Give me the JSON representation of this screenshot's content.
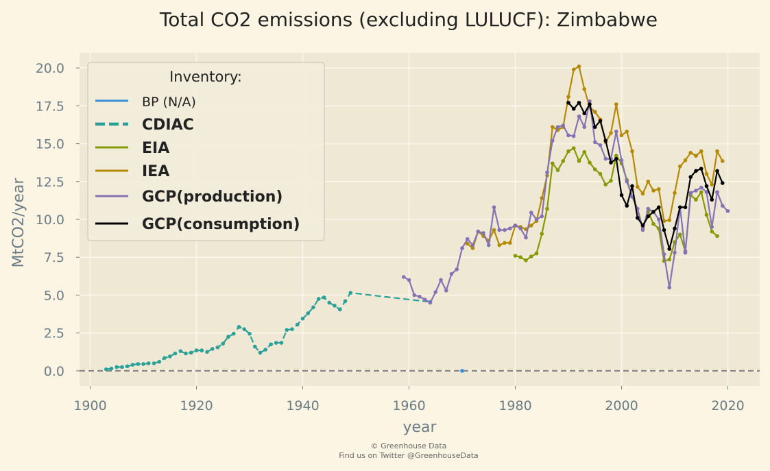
{
  "chart_data": {
    "type": "line",
    "title": "Total CO2 emissions (excluding LULUCF): Zimbabwe",
    "xlabel": "year",
    "ylabel": "MtCO2/year",
    "xlim": [
      1898,
      2026
    ],
    "ylim": [
      -1.0,
      21.0
    ],
    "xticks": [
      1900,
      1920,
      1940,
      1960,
      1980,
      2000,
      2020
    ],
    "yticks": [
      0.0,
      2.5,
      5.0,
      7.5,
      10.0,
      12.5,
      15.0,
      17.5,
      20.0
    ],
    "ytick_labels": [
      "0.0",
      "2.5",
      "5.0",
      "7.5",
      "10.0",
      "12.5",
      "15.0",
      "17.5",
      "20.0"
    ],
    "grid": true,
    "legend": {
      "title": "Inventory:",
      "position": "top-left"
    },
    "zero_line": {
      "y": 0,
      "style": "dashed",
      "color": "#7f7f7f"
    },
    "series": [
      {
        "name": "BP (N/A)",
        "color": "#3a8ed4",
        "dash": "solid",
        "bold": false,
        "x": [
          1970
        ],
        "y": [
          0.0
        ]
      },
      {
        "name": "CDIAC",
        "color": "#2aa198",
        "dash": "dashed",
        "bold": true,
        "x": [
          1903,
          1904,
          1905,
          1906,
          1907,
          1908,
          1909,
          1910,
          1911,
          1912,
          1913,
          1914,
          1915,
          1916,
          1917,
          1918,
          1919,
          1920,
          1921,
          1922,
          1923,
          1924,
          1925,
          1926,
          1927,
          1928,
          1929,
          1930,
          1931,
          1932,
          1933,
          1934,
          1935,
          1936,
          1937,
          1938,
          1939,
          1940,
          1941,
          1942,
          1943,
          1944,
          1945,
          1946,
          1947,
          1948,
          1949,
          1964
        ],
        "y": [
          0.1,
          0.15,
          0.25,
          0.25,
          0.3,
          0.4,
          0.45,
          0.45,
          0.5,
          0.5,
          0.6,
          0.85,
          0.95,
          1.15,
          1.3,
          1.15,
          1.2,
          1.35,
          1.35,
          1.25,
          1.45,
          1.55,
          1.8,
          2.25,
          2.45,
          2.9,
          2.75,
          2.45,
          1.6,
          1.2,
          1.4,
          1.75,
          1.85,
          1.85,
          2.7,
          2.75,
          3.05,
          3.45,
          3.8,
          4.2,
          4.75,
          4.85,
          4.5,
          4.3,
          4.05,
          4.6,
          5.15,
          4.55
        ]
      },
      {
        "name": "EIA",
        "color": "#859900",
        "dash": "solid",
        "bold": true,
        "x": [
          1980,
          1981,
          1982,
          1983,
          1984,
          1985,
          1986,
          1987,
          1988,
          1989,
          1990,
          1991,
          1992,
          1993,
          1994,
          1995,
          1996,
          1997,
          1998,
          1999,
          2000,
          2001,
          2002,
          2003,
          2004,
          2005,
          2006,
          2007,
          2008,
          2009,
          2010,
          2011,
          2012,
          2013,
          2014,
          2015,
          2016,
          2017,
          2018
        ],
        "y": [
          7.6,
          7.5,
          7.3,
          7.55,
          7.75,
          9.05,
          10.7,
          13.7,
          13.25,
          13.85,
          14.5,
          14.7,
          13.85,
          14.45,
          13.75,
          13.3,
          13.0,
          12.3,
          12.55,
          14.2,
          13.7,
          12.6,
          11.5,
          10.7,
          9.4,
          10.5,
          9.7,
          9.4,
          7.25,
          7.35,
          8.5,
          9.0,
          7.9,
          11.6,
          11.3,
          11.8,
          10.3,
          9.2,
          8.9
        ]
      },
      {
        "name": "IEA",
        "color": "#b58900",
        "dash": "solid",
        "bold": true,
        "x": [
          1971,
          1972,
          1973,
          1974,
          1975,
          1976,
          1977,
          1978,
          1979,
          1980,
          1981,
          1982,
          1983,
          1984,
          1985,
          1986,
          1987,
          1988,
          1989,
          1990,
          1991,
          1992,
          1993,
          1994,
          1995,
          1996,
          1997,
          1998,
          1999,
          2000,
          2001,
          2002,
          2003,
          2004,
          2005,
          2006,
          2007,
          2008,
          2009,
          2010,
          2011,
          2012,
          2013,
          2014,
          2015,
          2016,
          2017,
          2018,
          2019
        ],
        "y": [
          8.4,
          8.1,
          9.2,
          8.9,
          8.6,
          9.3,
          8.3,
          8.45,
          8.45,
          9.6,
          9.5,
          9.35,
          9.6,
          9.9,
          11.4,
          12.9,
          16.1,
          15.9,
          16.1,
          18.1,
          19.9,
          20.1,
          18.6,
          17.4,
          17.1,
          16.6,
          15.1,
          15.7,
          17.6,
          15.55,
          15.8,
          14.5,
          12.15,
          11.7,
          12.5,
          11.9,
          12.0,
          9.9,
          9.95,
          11.75,
          13.5,
          13.9,
          14.4,
          14.2,
          14.5,
          13.0,
          12.3,
          14.5,
          13.85
        ]
      },
      {
        "name": "GCP(production)",
        "color": "#8373b5",
        "dash": "solid",
        "bold": true,
        "x": [
          1959,
          1960,
          1961,
          1962,
          1963,
          1964,
          1965,
          1966,
          1967,
          1968,
          1969,
          1970,
          1971,
          1972,
          1973,
          1974,
          1975,
          1976,
          1977,
          1978,
          1979,
          1980,
          1981,
          1982,
          1983,
          1984,
          1985,
          1986,
          1987,
          1988,
          1989,
          1990,
          1991,
          1992,
          1993,
          1994,
          1995,
          1996,
          1997,
          1998,
          1999,
          2000,
          2001,
          2002,
          2003,
          2004,
          2005,
          2006,
          2007,
          2008,
          2009,
          2010,
          2011,
          2012,
          2013,
          2014,
          2015,
          2016,
          2017,
          2018,
          2019,
          2020
        ],
        "y": [
          6.2,
          6.0,
          5.0,
          4.9,
          4.7,
          4.5,
          5.2,
          6.0,
          5.3,
          6.4,
          6.7,
          8.1,
          8.7,
          8.3,
          9.2,
          9.1,
          8.3,
          10.8,
          9.3,
          9.3,
          9.4,
          9.6,
          9.4,
          8.8,
          10.45,
          10.0,
          10.2,
          13.1,
          15.2,
          16.1,
          16.2,
          15.55,
          15.5,
          16.8,
          16.1,
          17.8,
          15.1,
          14.9,
          14.0,
          14.0,
          15.8,
          13.9,
          12.5,
          11.5,
          10.7,
          9.3,
          10.7,
          10.5,
          10.0,
          7.7,
          5.5,
          7.8,
          10.8,
          7.8,
          11.75,
          11.9,
          12.1,
          11.8,
          9.5,
          11.8,
          10.9,
          10.55
        ]
      },
      {
        "name": "GCP(consumption)",
        "color": "#000000",
        "dash": "solid",
        "bold": true,
        "x": [
          1990,
          1991,
          1992,
          1993,
          1994,
          1995,
          1996,
          1997,
          1998,
          1999,
          2000,
          2001,
          2002,
          2003,
          2004,
          2005,
          2006,
          2007,
          2008,
          2009,
          2010,
          2011,
          2012,
          2013,
          2014,
          2015,
          2016,
          2017,
          2018,
          2019
        ],
        "y": [
          17.7,
          17.3,
          17.7,
          17.0,
          17.6,
          16.1,
          16.5,
          15.2,
          13.75,
          14.0,
          11.6,
          10.9,
          12.2,
          10.1,
          9.6,
          10.2,
          10.5,
          10.8,
          9.3,
          8.05,
          9.4,
          10.8,
          10.8,
          12.8,
          13.2,
          13.35,
          12.2,
          11.3,
          13.2,
          12.4
        ]
      }
    ]
  },
  "footer": {
    "line1": "© Greenhouse Data",
    "line2": "Find us on Twitter @GreenhouseData"
  }
}
